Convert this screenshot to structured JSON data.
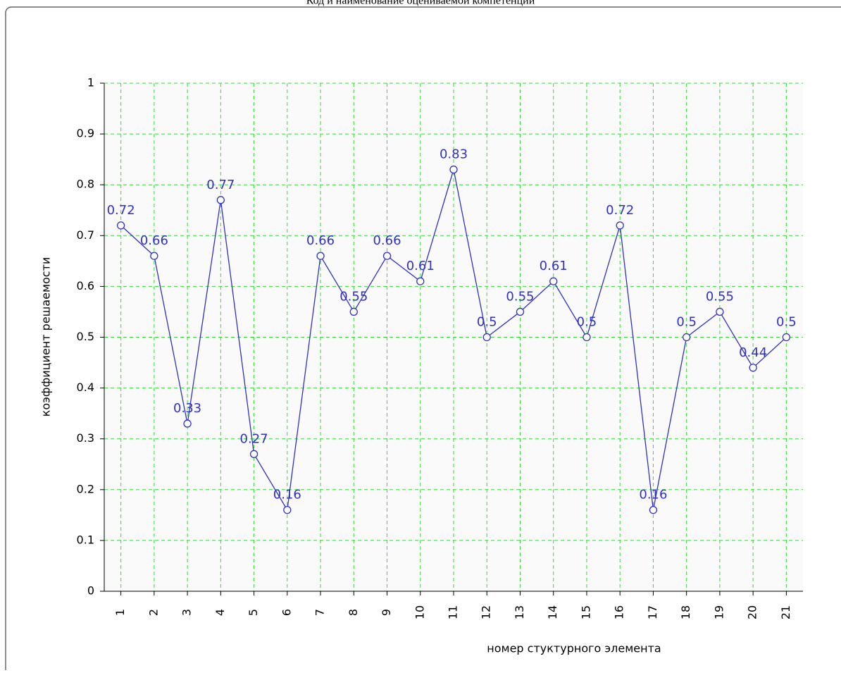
{
  "chart_data": {
    "type": "line",
    "title": "Код и наименование оцениваемой компетенции",
    "x_label": "номер стуктурного элемента",
    "y_label": "коэффициент решаемости",
    "categories": [
      "1",
      "2",
      "3",
      "4",
      "5",
      "6",
      "7",
      "8",
      "9",
      "10",
      "11",
      "12",
      "13",
      "14",
      "15",
      "16",
      "17",
      "18",
      "19",
      "20",
      "21"
    ],
    "values": [
      0.72,
      0.66,
      0.33,
      0.77,
      0.27,
      0.16,
      0.66,
      0.55,
      0.66,
      0.61,
      0.83,
      0.5,
      0.55,
      0.61,
      0.5,
      0.72,
      0.16,
      0.5,
      0.55,
      0.44,
      0.5
    ],
    "color": "#3030c8",
    "grid": true,
    "grid_color": "#33dd33",
    "ylim": [
      0,
      1
    ],
    "yticks": [
      0,
      0.1,
      0.2,
      0.3,
      0.4,
      0.5,
      0.6,
      0.7,
      0.8,
      0.9,
      1
    ]
  }
}
